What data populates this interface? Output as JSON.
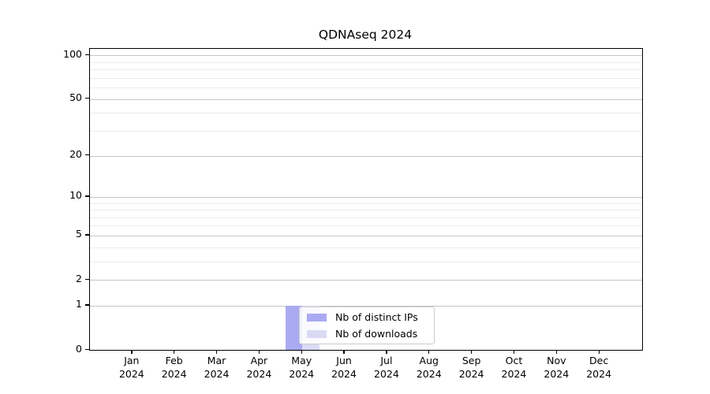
{
  "chart_data": {
    "type": "bar",
    "title": "QDNAseq 2024",
    "categories": [
      {
        "month": "Jan",
        "year": "2024"
      },
      {
        "month": "Feb",
        "year": "2024"
      },
      {
        "month": "Mar",
        "year": "2024"
      },
      {
        "month": "Apr",
        "year": "2024"
      },
      {
        "month": "May",
        "year": "2024"
      },
      {
        "month": "Jun",
        "year": "2024"
      },
      {
        "month": "Jul",
        "year": "2024"
      },
      {
        "month": "Aug",
        "year": "2024"
      },
      {
        "month": "Sep",
        "year": "2024"
      },
      {
        "month": "Oct",
        "year": "2024"
      },
      {
        "month": "Nov",
        "year": "2024"
      },
      {
        "month": "Dec",
        "year": "2024"
      }
    ],
    "series": [
      {
        "name": "Nb of distinct IPs",
        "color": "#aaaaf2",
        "values": [
          0,
          0,
          0,
          0,
          1,
          0,
          0,
          0,
          0,
          0,
          0,
          0
        ]
      },
      {
        "name": "Nb of downloads",
        "color": "#dadaf5",
        "values": [
          0,
          0,
          0,
          0,
          1,
          0,
          0,
          0,
          0,
          0,
          0,
          0
        ]
      }
    ],
    "y_axis": {
      "scale": "log1p",
      "ylim": [
        0,
        111
      ],
      "major_ticks": [
        0,
        1,
        2,
        5,
        10,
        20,
        50,
        100
      ],
      "minor_gridlines": [
        3,
        4,
        6,
        7,
        8,
        9,
        30,
        40,
        60,
        70,
        80,
        90
      ]
    },
    "x_axis": {
      "tick_count": 12
    },
    "legend": {
      "position": "inside-lower-center",
      "entries": [
        "Nb of distinct IPs",
        "Nb of downloads"
      ]
    },
    "grid": "horizontal-only",
    "colors": {
      "major_grid": "#c6c6c6",
      "minor_grid": "#ececec",
      "spine": "#000000",
      "text": "#000000",
      "legend_border": "#cccccc",
      "legend_background": "rgba(255,255,255,0.85)",
      "figure_background": "#ffffff"
    }
  }
}
